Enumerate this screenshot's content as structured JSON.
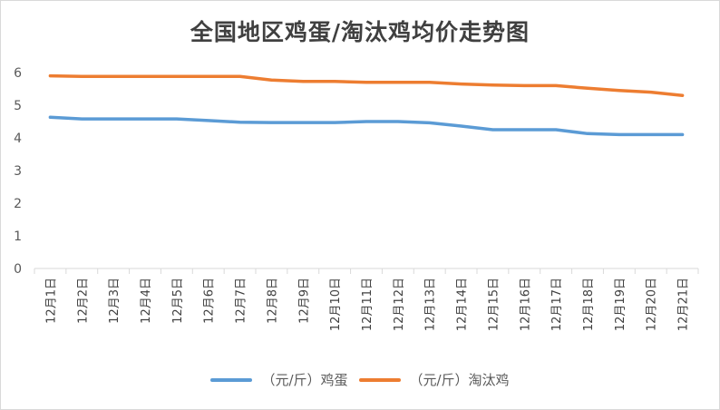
{
  "chart_data": {
    "type": "line",
    "title": "全国地区鸡蛋/淘汰鸡均价走势图",
    "categories": [
      "12月1日",
      "12月2日",
      "12月3日",
      "12月4日",
      "12月5日",
      "12月6日",
      "12月7日",
      "12月8日",
      "12月9日",
      "12月10日",
      "12月11日",
      "12月12日",
      "12月13日",
      "12月14日",
      "12月15日",
      "12月16日",
      "12月17日",
      "12月18日",
      "12月19日",
      "12月20日",
      "12月21日"
    ],
    "series": [
      {
        "name": "（元/斤）鸡蛋",
        "color": "#5b9bd5",
        "values": [
          4.63,
          4.58,
          4.58,
          4.58,
          4.58,
          4.53,
          4.48,
          4.47,
          4.47,
          4.47,
          4.5,
          4.5,
          4.46,
          4.36,
          4.25,
          4.25,
          4.25,
          4.13,
          4.1,
          4.1,
          4.1
        ]
      },
      {
        "name": "（元/斤）淘汰鸡",
        "color": "#ed7d31",
        "values": [
          5.9,
          5.88,
          5.88,
          5.88,
          5.88,
          5.88,
          5.88,
          5.77,
          5.73,
          5.73,
          5.7,
          5.7,
          5.7,
          5.65,
          5.62,
          5.6,
          5.6,
          5.52,
          5.45,
          5.4,
          5.3
        ]
      }
    ],
    "yticks": [
      "0",
      "1",
      "2",
      "3",
      "4",
      "5",
      "6"
    ],
    "ylim": [
      0,
      6
    ],
    "grid": false,
    "legend_position": "bottom"
  }
}
